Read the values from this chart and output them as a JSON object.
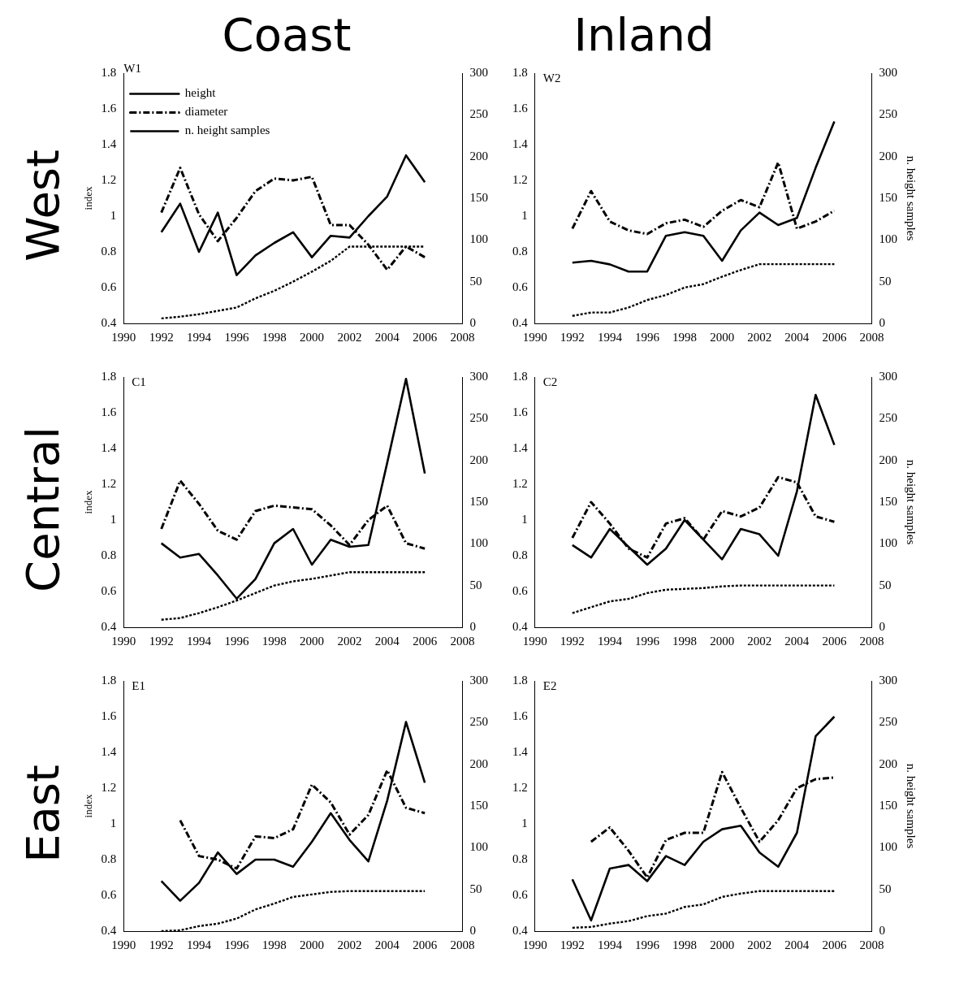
{
  "chart_data": [
    {
      "type": "line",
      "title": "Coast",
      "ylabel": "index",
      "annotations": [
        "West",
        "W1"
      ],
      "legend": "top left",
      "x": [
        1992,
        1993,
        1994,
        1995,
        1996,
        1997,
        1998,
        1999,
        2000,
        2001,
        2002,
        2003,
        2004,
        2005,
        2006
      ],
      "xlim": [
        1990,
        2008
      ],
      "xticks": [
        1990,
        1992,
        1994,
        1996,
        1998,
        2000,
        2002,
        2004,
        2006,
        2008
      ],
      "ylim": [
        0.4,
        1.8
      ],
      "yticks": [
        0.4,
        0.6,
        0.8,
        1.0,
        1.2,
        1.4,
        1.6,
        1.8
      ],
      "y2lim": [
        0,
        300
      ],
      "y2ticks": [
        0,
        50,
        100,
        150,
        200,
        250,
        300
      ],
      "series": [
        {
          "name": "height",
          "color": "#000000",
          "line_style": "solid",
          "values": [
            0.91,
            1.07,
            0.8,
            1.02,
            0.67,
            0.78,
            0.85,
            0.91,
            0.77,
            0.89,
            0.88,
            1.0,
            1.11,
            1.34,
            1.19
          ]
        },
        {
          "name": "diameter",
          "color": "#000000",
          "line_style": "dashed",
          "values": [
            1.02,
            1.27,
            1.01,
            0.86,
            0.99,
            1.14,
            1.21,
            1.2,
            1.22,
            0.95,
            0.95,
            0.84,
            0.7,
            0.83,
            0.77
          ]
        },
        {
          "name": "n. height samples",
          "color": "#000000",
          "line_style": "dotted",
          "axis": "y2",
          "values": [
            6,
            8,
            11,
            15,
            19,
            30,
            39,
            50,
            62,
            75,
            92,
            92,
            92,
            92,
            92
          ]
        }
      ]
    },
    {
      "type": "line",
      "title": "Inland",
      "y2label": "n. height samples",
      "annotations": [
        "W2"
      ],
      "x": [
        1992,
        1993,
        1994,
        1995,
        1996,
        1997,
        1998,
        1999,
        2000,
        2001,
        2002,
        2003,
        2004,
        2005,
        2006
      ],
      "xlim": [
        1990,
        2008
      ],
      "xticks": [
        1990,
        1992,
        1994,
        1996,
        1998,
        2000,
        2002,
        2004,
        2006,
        2008
      ],
      "ylim": [
        0.4,
        1.8
      ],
      "yticks": [
        0.4,
        0.6,
        0.8,
        1.0,
        1.2,
        1.4,
        1.6,
        1.8
      ],
      "y2lim": [
        0,
        300
      ],
      "y2ticks": [
        0,
        50,
        100,
        150,
        200,
        250,
        300
      ],
      "series": [
        {
          "color": "#000000",
          "line_style": "solid",
          "values": [
            0.74,
            0.75,
            0.73,
            0.69,
            0.69,
            0.89,
            0.91,
            0.89,
            0.75,
            0.92,
            1.02,
            0.95,
            0.99,
            1.27,
            1.53
          ]
        },
        {
          "color": "#000000",
          "line_style": "dashed",
          "values": [
            0.93,
            1.14,
            0.97,
            0.92,
            0.9,
            0.96,
            0.98,
            0.94,
            1.03,
            1.09,
            1.05,
            1.3,
            0.93,
            0.97,
            1.03
          ]
        },
        {
          "color": "#000000",
          "line_style": "dotted",
          "axis": "y2",
          "values": [
            9,
            13,
            13,
            19,
            28,
            34,
            43,
            47,
            56,
            64,
            71,
            71,
            71,
            71,
            71
          ]
        }
      ]
    },
    {
      "type": "line",
      "ylabel": "index",
      "annotations": [
        "Central",
        "C1"
      ],
      "x": [
        1992,
        1993,
        1994,
        1995,
        1996,
        1997,
        1998,
        1999,
        2000,
        2001,
        2002,
        2003,
        2004,
        2005,
        2006
      ],
      "xlim": [
        1990,
        2008
      ],
      "xticks": [
        1990,
        1992,
        1994,
        1996,
        1998,
        2000,
        2002,
        2004,
        2006,
        2008
      ],
      "ylim": [
        0.4,
        1.8
      ],
      "yticks": [
        0.4,
        0.6,
        0.8,
        1.0,
        1.2,
        1.4,
        1.6,
        1.8
      ],
      "y2lim": [
        0,
        300
      ],
      "y2ticks": [
        0,
        50,
        100,
        150,
        200,
        250,
        300
      ],
      "series": [
        {
          "color": "#000000",
          "line_style": "solid",
          "values": [
            0.87,
            0.79,
            0.81,
            0.69,
            0.56,
            0.67,
            0.87,
            0.95,
            0.75,
            0.89,
            0.85,
            0.86,
            1.32,
            1.79,
            1.26
          ]
        },
        {
          "color": "#000000",
          "line_style": "dashed",
          "values": [
            0.95,
            1.22,
            1.09,
            0.94,
            0.89,
            1.05,
            1.08,
            1.07,
            1.06,
            0.97,
            0.86,
            1.0,
            1.08,
            0.87,
            0.84
          ]
        },
        {
          "color": "#000000",
          "line_style": "dotted",
          "axis": "y2",
          "values": [
            9,
            11,
            17,
            24,
            32,
            41,
            50,
            55,
            58,
            62,
            66,
            66,
            66,
            66,
            66
          ]
        }
      ]
    },
    {
      "type": "line",
      "y2label": "n. height samples",
      "annotations": [
        "C2"
      ],
      "x": [
        1992,
        1993,
        1994,
        1995,
        1996,
        1997,
        1998,
        1999,
        2000,
        2001,
        2002,
        2003,
        2004,
        2005,
        2006
      ],
      "xlim": [
        1990,
        2008
      ],
      "xticks": [
        1990,
        1992,
        1994,
        1996,
        1998,
        2000,
        2002,
        2004,
        2006,
        2008
      ],
      "ylim": [
        0.4,
        1.8
      ],
      "yticks": [
        0.4,
        0.6,
        0.8,
        1.0,
        1.2,
        1.4,
        1.6,
        1.8
      ],
      "y2lim": [
        0,
        300
      ],
      "y2ticks": [
        0,
        50,
        100,
        150,
        200,
        250,
        300
      ],
      "series": [
        {
          "color": "#000000",
          "line_style": "solid",
          "values": [
            0.86,
            0.79,
            0.95,
            0.85,
            0.75,
            0.84,
            1.0,
            0.89,
            0.78,
            0.95,
            0.92,
            0.8,
            1.16,
            1.7,
            1.42
          ]
        },
        {
          "color": "#000000",
          "line_style": "dashed",
          "values": [
            0.9,
            1.1,
            0.98,
            0.84,
            0.79,
            0.98,
            1.01,
            0.89,
            1.05,
            1.02,
            1.07,
            1.24,
            1.21,
            1.02,
            0.99
          ]
        },
        {
          "color": "#000000",
          "line_style": "dotted",
          "axis": "y2",
          "values": [
            17,
            24,
            31,
            34,
            41,
            45,
            46,
            47,
            49,
            50,
            50,
            50,
            50,
            50,
            50
          ]
        }
      ]
    },
    {
      "type": "line",
      "ylabel": "index",
      "annotations": [
        "East",
        "E1"
      ],
      "x": [
        1992,
        1993,
        1994,
        1995,
        1996,
        1997,
        1998,
        1999,
        2000,
        2001,
        2002,
        2003,
        2004,
        2005,
        2006
      ],
      "xlim": [
        1990,
        2008
      ],
      "xticks": [
        1990,
        1992,
        1994,
        1996,
        1998,
        2000,
        2002,
        2004,
        2006,
        2008
      ],
      "ylim": [
        0.4,
        1.8
      ],
      "yticks": [
        0.4,
        0.6,
        0.8,
        1.0,
        1.2,
        1.4,
        1.6,
        1.8
      ],
      "y2lim": [
        0,
        300
      ],
      "y2ticks": [
        0,
        50,
        100,
        150,
        200,
        250,
        300
      ],
      "series": [
        {
          "color": "#000000",
          "line_style": "solid",
          "values": [
            0.68,
            0.57,
            0.67,
            0.84,
            0.72,
            0.8,
            0.8,
            0.76,
            0.9,
            1.06,
            0.91,
            0.79,
            1.13,
            1.57,
            1.23
          ]
        },
        {
          "color": "#000000",
          "line_style": "dashed",
          "values": [
            null,
            1.02,
            0.82,
            0.8,
            0.75,
            0.93,
            0.92,
            0.97,
            1.22,
            1.12,
            0.94,
            1.05,
            1.3,
            1.09,
            1.06
          ]
        },
        {
          "color": "#000000",
          "line_style": "dotted",
          "axis": "y2",
          "values": [
            0,
            1,
            6,
            9,
            15,
            26,
            33,
            41,
            44,
            47,
            48,
            48,
            48,
            48,
            48
          ]
        }
      ]
    },
    {
      "type": "line",
      "y2label": "n. height samples",
      "annotations": [
        "E2"
      ],
      "x": [
        1992,
        1993,
        1994,
        1995,
        1996,
        1997,
        1998,
        1999,
        2000,
        2001,
        2002,
        2003,
        2004,
        2005,
        2006
      ],
      "xlim": [
        1990,
        2008
      ],
      "xticks": [
        1990,
        1992,
        1994,
        1996,
        1998,
        2000,
        2002,
        2004,
        2006,
        2008
      ],
      "ylim": [
        0.4,
        1.8
      ],
      "yticks": [
        0.4,
        0.6,
        0.8,
        1.0,
        1.2,
        1.4,
        1.6,
        1.8
      ],
      "y2lim": [
        0,
        300
      ],
      "y2ticks": [
        0,
        50,
        100,
        150,
        200,
        250,
        300
      ],
      "series": [
        {
          "color": "#000000",
          "line_style": "solid",
          "values": [
            0.69,
            0.46,
            0.75,
            0.77,
            0.68,
            0.82,
            0.77,
            0.9,
            0.97,
            0.99,
            0.84,
            0.76,
            0.95,
            1.49,
            1.6
          ]
        },
        {
          "color": "#000000",
          "line_style": "dashed",
          "values": [
            null,
            0.9,
            0.98,
            0.85,
            0.7,
            0.91,
            0.95,
            0.95,
            1.29,
            1.09,
            0.9,
            1.02,
            1.2,
            1.25,
            1.26
          ]
        },
        {
          "color": "#000000",
          "line_style": "dotted",
          "axis": "y2",
          "values": [
            4,
            5,
            9,
            12,
            18,
            21,
            29,
            32,
            41,
            45,
            48,
            48,
            48,
            48,
            48
          ]
        }
      ]
    }
  ]
}
